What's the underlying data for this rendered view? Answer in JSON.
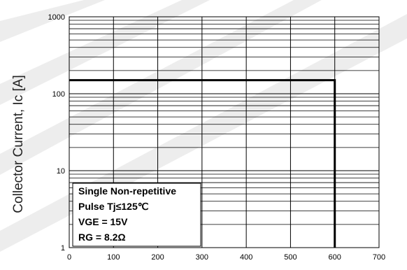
{
  "chart_data": {
    "type": "line",
    "title": "",
    "xlabel": "",
    "ylabel": "Collector Current, Ic [A]",
    "xlim": [
      0,
      700
    ],
    "ylim": [
      1,
      1000
    ],
    "yscale": "log",
    "grid": true,
    "xticks": [
      "0",
      "100",
      "200",
      "300",
      "400",
      "500",
      "600",
      "700"
    ],
    "yticks": [
      "1",
      "10",
      "100",
      "1000"
    ],
    "series": [
      {
        "x": [
          0,
          600,
          600
        ],
        "y": [
          150,
          150,
          1
        ],
        "color": "#000000"
      }
    ],
    "legend": {
      "placement": "bottom-left",
      "lines": [
        "Single Non-repetitive",
        "Pulse Tj≤125℃",
        "VGE = 15V",
        "RG = 8.2Ω"
      ]
    }
  }
}
